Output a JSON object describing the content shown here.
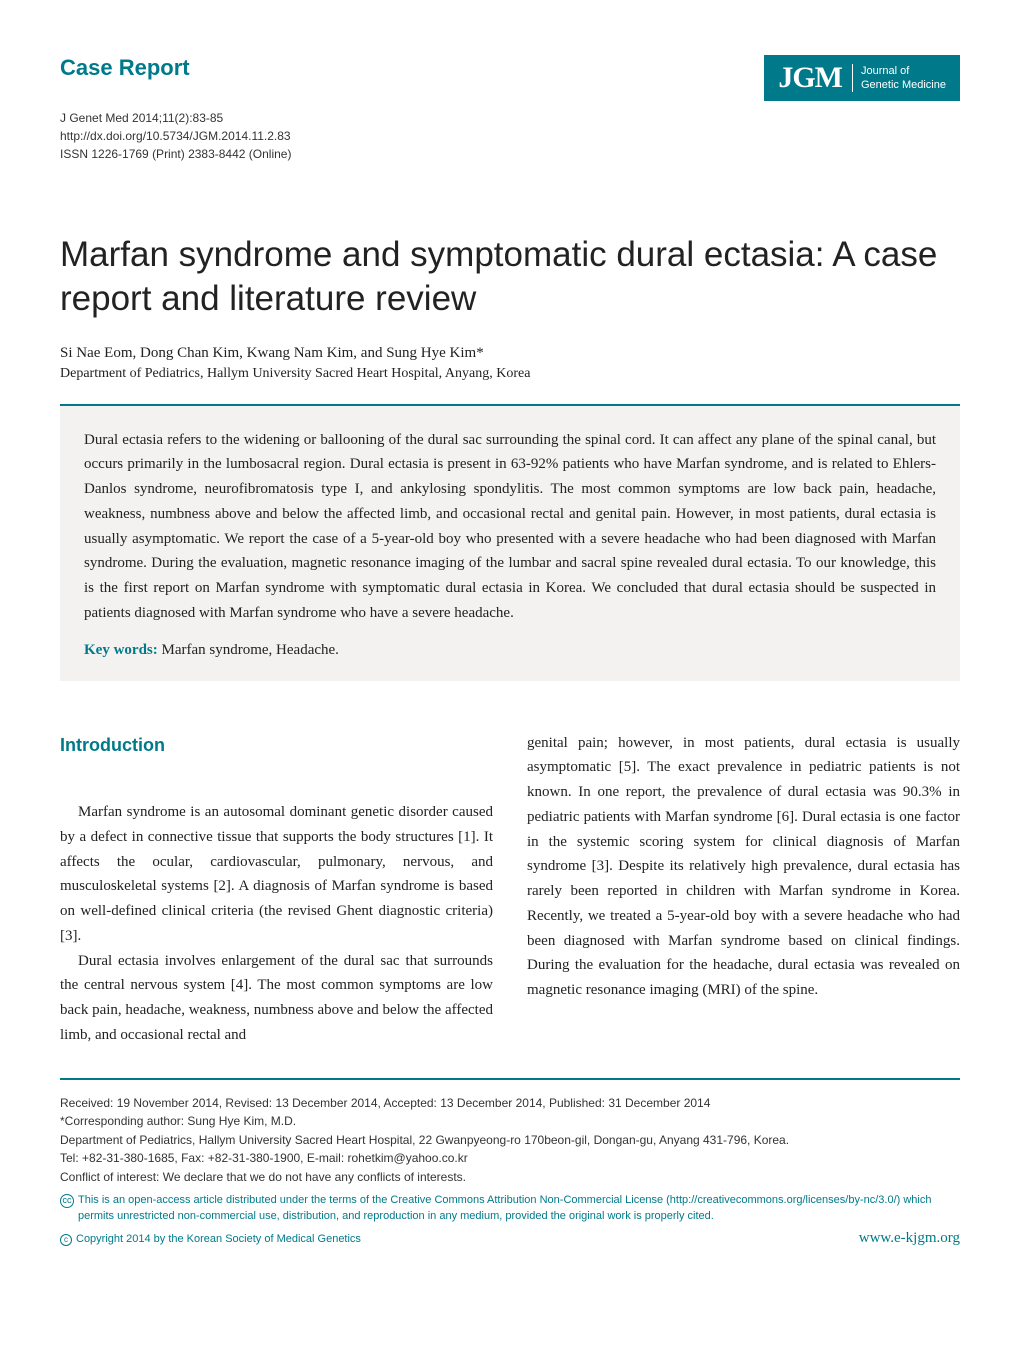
{
  "header": {
    "case_report_label": "Case Report",
    "citation": "J Genet Med 2014;11(2):83-85",
    "doi": "http://dx.doi.org/10.5734/JGM.2014.11.2.83",
    "issn": "ISSN 1226-1769 (Print) 2383-8442 (Online)",
    "logo_abbr": "JGM",
    "logo_line1": "Journal of",
    "logo_line2": "Genetic Medicine"
  },
  "article": {
    "title": "Marfan syndrome and symptomatic dural ectasia: A case report and literature review",
    "authors": "Si Nae Eom, Dong Chan Kim, Kwang Nam Kim, and Sung Hye Kim*",
    "affiliation": "Department of Pediatrics, Hallym University Sacred Heart Hospital, Anyang, Korea"
  },
  "abstract": {
    "text": "Dural ectasia refers to the widening or ballooning of the dural sac surrounding the spinal cord. It can affect any plane of the spinal canal, but occurs primarily in the lumbosacral region. Dural ectasia is present in 63-92% patients who have Marfan syndrome, and is related to Ehlers-Danlos syndrome, neurofibromatosis type I, and ankylosing spondylitis. The most common symptoms are low back pain, headache, weakness, numbness above and below the affected limb, and occasional rectal and genital pain. However, in most patients, dural ectasia is usually asymptomatic. We report the case of a 5-year-old boy who presented with a severe headache who had been diagnosed with Marfan syndrome. During the evaluation, magnetic resonance imaging of the lumbar and sacral spine revealed dural ectasia. To our knowledge, this is the first report on Marfan syndrome with symptomatic dural ectasia in Korea. We concluded that dural ectasia should be suspected in patients diagnosed with Marfan syndrome who have a severe headache.",
    "keywords_label": "Key words:",
    "keywords": " Marfan syndrome, Headache."
  },
  "body": {
    "intro_heading": "Introduction",
    "col1_p1": "Marfan syndrome is an autosomal dominant genetic disorder caused by a defect in connective tissue that supports the body structures [1]. It affects the ocular, cardiovascular, pulmonary, nervous, and musculoskeletal systems [2]. A diagnosis of Marfan syndrome is based on well-defined clinical criteria (the revised Ghent diagnostic criteria) [3].",
    "col1_p2": "Dural ectasia involves enlargement of the dural sac that surrounds the central nervous system [4]. The most common symptoms are low back pain, headache, weakness, numbness above and below the affected limb, and occasional rectal and",
    "col2_p1": "genital pain; however, in most patients, dural ectasia is usually asymptomatic [5]. The exact prevalence in pediatric patients is not known. In one report, the prevalence of dural ectasia was 90.3% in pediatric patients with Marfan syndrome [6]. Dural ectasia is one factor in the systemic scoring system for clinical diagnosis of Marfan syndrome [3]. Despite its relatively high prevalence, dural ectasia has rarely been reported in children with Marfan syndrome in Korea. Recently, we treated a 5-year-old boy with a severe headache who had been diagnosed with Marfan syndrome based on clinical findings. During the evaluation for the headache, dural ectasia was revealed on magnetic resonance imaging (MRI) of the spine."
  },
  "footer": {
    "dates": "Received: 19 November 2014, Revised: 13 December 2014, Accepted: 13 December 2014, Published: 31 December 2014",
    "corresponding": "*Corresponding author: Sung Hye Kim, M.D.",
    "address": "Department of Pediatrics, Hallym University Sacred Heart Hospital, 22 Gwanpyeong-ro 170beon-gil, Dongan-gu, Anyang 431-796, Korea.",
    "contact": "Tel: +82-31-380-1685, Fax: +82-31-380-1900, E-mail: rohetkim@yahoo.co.kr",
    "conflict": "Conflict of interest: We declare that we do not have any conflicts of interests.",
    "license": "This is an open-access article distributed under the terms of the Creative Commons Attribution Non-Commercial License (http://creativecommons.org/licenses/by-nc/3.0/) which permits unrestricted non-commercial use, distribution, and reproduction in any medium, provided the original work is properly cited.",
    "copyright": "Copyright 2014 by the Korean Society of Medical Genetics",
    "website": "www.e-kjgm.org"
  },
  "colors": {
    "teal": "#007a8a",
    "abstract_bg": "#f3f2f0",
    "text": "#222222",
    "footer_text": "#333333"
  },
  "typography": {
    "title_fontsize": 35,
    "body_fontsize": 15,
    "footer_fontsize": 12,
    "section_heading_fontsize": 18,
    "case_report_fontsize": 22
  }
}
